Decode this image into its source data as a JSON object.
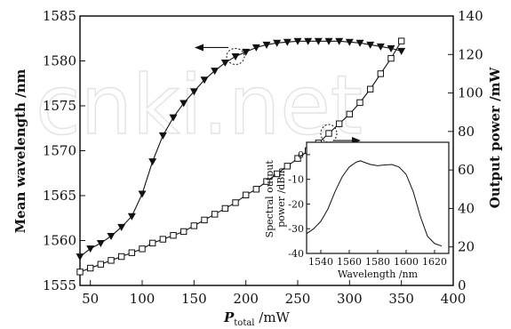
{
  "watermark": "cnki.net",
  "chart_data": [
    {
      "type": "line",
      "title": "",
      "xlabel": "P_total /mW",
      "xlabel_base": "P",
      "xlabel_sub": "total",
      "xlabel_unit": " /mW",
      "ylabel": "Mean wavelength /nm",
      "y2label": "Output power /mW",
      "xlim": [
        40,
        400
      ],
      "ylim": [
        1555,
        1585
      ],
      "y2lim": [
        0,
        140
      ],
      "xticks": [
        50,
        100,
        150,
        200,
        250,
        300,
        350,
        400
      ],
      "yticks": [
        1555,
        1560,
        1565,
        1570,
        1575,
        1580,
        1585
      ],
      "y2ticks": [
        0,
        20,
        40,
        60,
        80,
        100,
        120,
        140
      ],
      "grid": false,
      "series": [
        {
          "axis": "left",
          "marker": "filled-down-triangle",
          "x": [
            40,
            50,
            60,
            70,
            80,
            90,
            100,
            110,
            120,
            130,
            140,
            150,
            160,
            170,
            180,
            190,
            200,
            210,
            220,
            230,
            240,
            250,
            260,
            270,
            280,
            290,
            300,
            310,
            320,
            330,
            340,
            350
          ],
          "values": [
            1558.2,
            1559.1,
            1559.7,
            1560.5,
            1561.5,
            1562.7,
            1565.2,
            1568.8,
            1571.7,
            1573.7,
            1575.3,
            1576.6,
            1577.9,
            1578.9,
            1579.8,
            1580.5,
            1581.0,
            1581.5,
            1581.8,
            1582.0,
            1582.1,
            1582.2,
            1582.2,
            1582.2,
            1582.2,
            1582.2,
            1582.1,
            1582.0,
            1581.8,
            1581.6,
            1581.4,
            1581.1
          ]
        },
        {
          "axis": "right",
          "marker": "open-square",
          "x": [
            40,
            50,
            60,
            70,
            80,
            90,
            100,
            110,
            120,
            130,
            140,
            150,
            160,
            170,
            180,
            190,
            200,
            210,
            220,
            230,
            240,
            250,
            260,
            270,
            280,
            290,
            300,
            310,
            320,
            330,
            340,
            350
          ],
          "values": [
            7,
            9,
            11,
            13,
            15,
            17,
            19,
            22,
            24,
            26,
            28,
            31,
            34,
            37,
            40,
            43,
            47,
            50,
            54,
            58,
            62,
            66,
            70,
            74,
            79,
            84,
            89,
            95,
            102,
            110,
            118,
            127
          ]
        }
      ],
      "annotations": [
        {
          "type": "arrow",
          "direction": "left",
          "series": 0
        },
        {
          "type": "arrow",
          "direction": "right",
          "series": 1
        }
      ]
    },
    {
      "type": "line",
      "title": "",
      "xlabel": "Wavelength /nm",
      "ylabel": "Spectral output power /dBm",
      "ylabel_line1": "Spectral output",
      "ylabel_line2": "power /dBm",
      "xlim": [
        1530,
        1630
      ],
      "ylim": [
        -40,
        5
      ],
      "xticks": [
        1540,
        1560,
        1580,
        1600,
        1620
      ],
      "yticks": [
        0,
        -10,
        -20,
        -30,
        -40
      ],
      "series": [
        {
          "x": [
            1530,
            1535,
            1540,
            1545,
            1550,
            1555,
            1560,
            1565,
            1568,
            1570,
            1575,
            1580,
            1585,
            1590,
            1595,
            1600,
            1605,
            1610,
            1615,
            1620,
            1625
          ],
          "values": [
            -32,
            -30,
            -27,
            -22,
            -15,
            -9,
            -5,
            -3,
            -2.5,
            -3,
            -4,
            -4.5,
            -4.2,
            -4,
            -5,
            -8,
            -15,
            -25,
            -33,
            -36,
            -37
          ]
        }
      ]
    }
  ]
}
